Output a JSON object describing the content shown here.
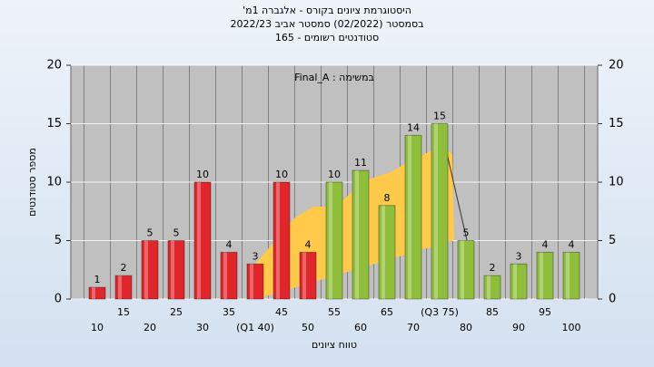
{
  "chart_data": {
    "type": "bar",
    "title": "היסטוגרמת ציונים בקורס - אלגברה 1מ'",
    "subtitle": "בסמסטר (02/2022) סמסטר אביב 2022/23",
    "subtitle2": "סטודנטים רשומים - 165",
    "annotation": "במשימה : Final_A",
    "y_label": "מספר סטודנטים",
    "x_label": "טווח ציונים",
    "categories": [
      "10",
      "15",
      "20",
      "25",
      "30",
      "35",
      "(Q1 40)",
      "45",
      "50",
      "55",
      "60",
      "65",
      "70",
      "(Q3 75)",
      "80",
      "85",
      "90",
      "95",
      "100"
    ],
    "values": [
      1,
      2,
      5,
      5,
      10,
      4,
      3,
      10,
      4,
      10,
      11,
      8,
      14,
      15,
      5,
      2,
      3,
      4,
      4
    ],
    "colors": [
      "#e0262a",
      "#e0262a",
      "#e0262a",
      "#e0262a",
      "#e0262a",
      "#e0262a",
      "#e0262a",
      "#e0262a",
      "#e0262a",
      "#8fbf3a",
      "#8fbf3a",
      "#8fbf3a",
      "#8fbf3a",
      "#8fbf3a",
      "#8fbf3a",
      "#8fbf3a",
      "#8fbf3a",
      "#8fbf3a",
      "#8fbf3a"
    ],
    "ylim": [
      0,
      20
    ],
    "yticks": [
      0,
      5,
      10,
      15,
      20
    ],
    "grid": true
  }
}
